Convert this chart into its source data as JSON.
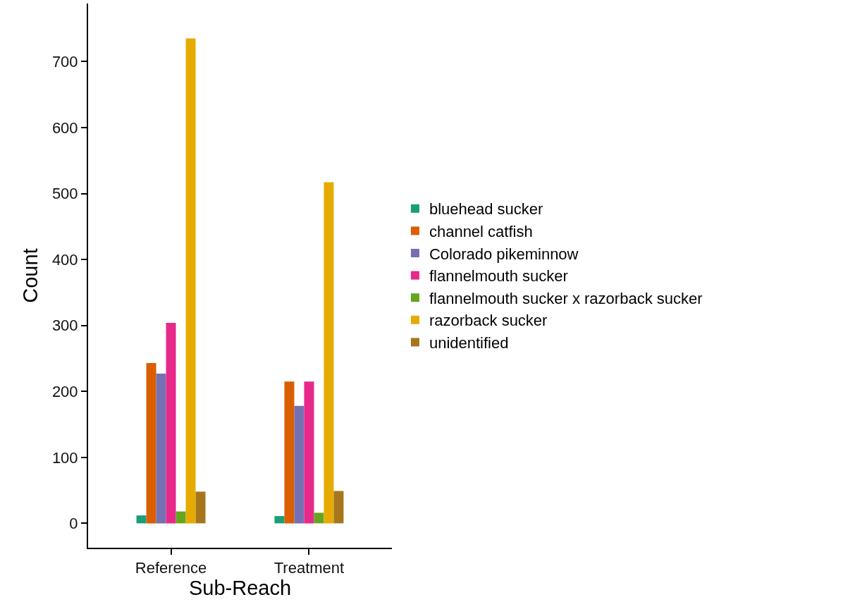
{
  "chart_data": {
    "type": "bar",
    "xlabel": "Sub-Reach",
    "ylabel": "Count",
    "categories": [
      "Reference",
      "Treatment"
    ],
    "series": [
      {
        "name": "bluehead sucker",
        "color": "#1b9e77",
        "values": [
          12,
          11
        ]
      },
      {
        "name": "channel catfish",
        "color": "#d95f02",
        "values": [
          243,
          215
        ]
      },
      {
        "name": "Colorado pikeminnow",
        "color": "#7570b3",
        "values": [
          227,
          178
        ]
      },
      {
        "name": "flannelmouth sucker",
        "color": "#e7298a",
        "values": [
          304,
          215
        ]
      },
      {
        "name": "flannelmouth sucker x razorback sucker",
        "color": "#66a61e",
        "values": [
          18,
          16
        ]
      },
      {
        "name": "razorback sucker",
        "color": "#e6ab02",
        "values": [
          735,
          517
        ]
      },
      {
        "name": "unidentified",
        "color": "#a6761d",
        "values": [
          48,
          49
        ]
      }
    ],
    "ylim": [
      -37,
      788
    ],
    "yticks": [
      0,
      100,
      200,
      300,
      400,
      500,
      600,
      700
    ],
    "grid": false,
    "legend": "right"
  }
}
